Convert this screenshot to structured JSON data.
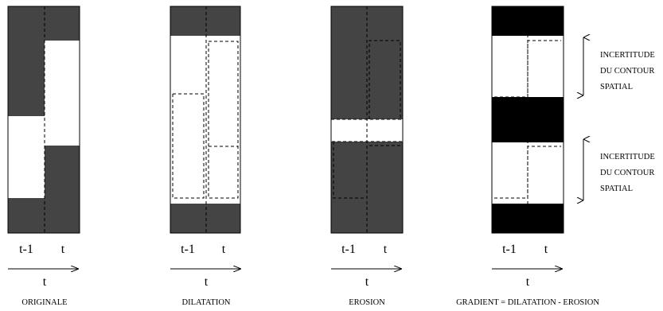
{
  "colors": {
    "dark": "#444444",
    "black": "#000000",
    "white": "#ffffff",
    "line": "#000000"
  },
  "panels": [
    {
      "id": "originale",
      "caption": "ORIGINALE",
      "col_left_label": "t-1",
      "col_right_label": "t",
      "axis_label": "t"
    },
    {
      "id": "dilatation",
      "caption": "DILATATION",
      "col_left_label": "t-1",
      "col_right_label": "t",
      "axis_label": "t"
    },
    {
      "id": "erosion",
      "caption": "EROSION",
      "col_left_label": "t-1",
      "col_right_label": "t",
      "axis_label": "t"
    },
    {
      "id": "gradient",
      "caption": "GRADIENT = DILATATION - EROSION",
      "col_left_label": "t-1",
      "col_right_label": "t",
      "axis_label": "t"
    }
  ],
  "annotations": [
    {
      "lines": [
        "INCERTITUDE",
        "DU CONTOUR",
        "SPATIAL"
      ]
    },
    {
      "lines": [
        "INCERTITUDE",
        "DU CONTOUR",
        "SPATIAL"
      ]
    }
  ]
}
